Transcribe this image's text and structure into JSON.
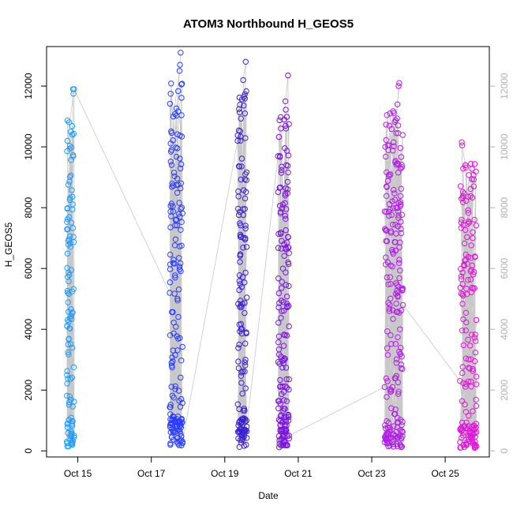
{
  "chart_data": {
    "type": "scatter",
    "title": "ATOM3 Northbound H_GEOS5",
    "xlabel": "Date",
    "ylabel": "H_GEOS5",
    "x_unit": "days since Oct 14, 00:00",
    "xlim": [
      14.15,
      26.2
    ],
    "ylim": [
      -200,
      13300
    ],
    "x_ticks": [
      {
        "value": 15,
        "label": "Oct 15"
      },
      {
        "value": 17,
        "label": "Oct 17"
      },
      {
        "value": 19,
        "label": "Oct 19"
      },
      {
        "value": 21,
        "label": "Oct 21"
      },
      {
        "value": 23,
        "label": "Oct 23"
      },
      {
        "value": 25,
        "label": "Oct 25"
      }
    ],
    "y_ticks": [
      0,
      2000,
      4000,
      6000,
      8000,
      10000,
      12000
    ],
    "right_axis_ticks": [
      0,
      2000,
      4000,
      6000,
      8000,
      10000,
      12000
    ],
    "connecting_line_color": "#c8c8c8",
    "point_style": "open-circle",
    "grid": false,
    "series": [
      {
        "color": "#1e9bff",
        "x_start": 14.7,
        "x_end": 14.9,
        "n": 110,
        "y_min": 150,
        "y_max": 11900,
        "seed": 11,
        "first_y": 300,
        "last_y": 11900,
        "extremes": [
          [
            14.87,
            11900
          ],
          [
            14.88,
            11750
          ],
          [
            14.72,
            10200
          ],
          [
            14.81,
            10500
          ],
          [
            14.75,
            150
          ],
          [
            14.85,
            200
          ],
          [
            14.9,
            500
          ]
        ]
      },
      {
        "color": "#2a3cff",
        "x_start": 17.5,
        "x_end": 17.85,
        "n": 170,
        "y_min": 180,
        "y_max": 13100,
        "seed": 23,
        "first_y": 5200,
        "last_y": 300,
        "extremes": [
          [
            17.8,
            13100
          ],
          [
            17.78,
            12700
          ],
          [
            17.77,
            12500
          ],
          [
            17.6,
            11000
          ],
          [
            17.55,
            9900
          ],
          [
            17.52,
            200
          ],
          [
            17.82,
            180
          ]
        ]
      },
      {
        "color": "#3a1fd8",
        "x_start": 19.35,
        "x_end": 19.6,
        "n": 140,
        "y_min": 120,
        "y_max": 12800,
        "seed": 37,
        "first_y": 10200,
        "last_y": 800,
        "extremes": [
          [
            19.57,
            12800
          ],
          [
            19.5,
            12200
          ],
          [
            19.55,
            11100
          ],
          [
            19.4,
            130
          ],
          [
            19.58,
            200
          ]
        ]
      },
      {
        "color": "#7a14e0",
        "x_start": 20.45,
        "x_end": 20.75,
        "n": 170,
        "y_min": 100,
        "y_max": 12350,
        "seed": 53,
        "first_y": 9700,
        "last_y": 500,
        "extremes": [
          [
            20.72,
            12350
          ],
          [
            20.65,
            11500
          ],
          [
            20.62,
            10900
          ],
          [
            20.5,
            9700
          ],
          [
            20.48,
            120
          ],
          [
            20.7,
            180
          ]
        ]
      },
      {
        "color": "#b21ee6",
        "x_start": 23.35,
        "x_end": 23.85,
        "n": 220,
        "y_min": 100,
        "y_max": 12100,
        "seed": 71,
        "first_y": 2100,
        "last_y": 4800,
        "extremes": [
          [
            23.75,
            12100
          ],
          [
            23.73,
            12000
          ],
          [
            23.7,
            11400
          ],
          [
            23.4,
            8700
          ],
          [
            23.45,
            150
          ],
          [
            23.8,
            120
          ]
        ]
      },
      {
        "color": "#de18d8",
        "x_start": 25.4,
        "x_end": 25.85,
        "n": 170,
        "y_min": 100,
        "y_max": 10150,
        "seed": 97,
        "first_y": 2300,
        "last_y": 150,
        "extremes": [
          [
            25.45,
            10150
          ],
          [
            25.46,
            10050
          ],
          [
            25.55,
            9400
          ],
          [
            25.8,
            100
          ],
          [
            25.5,
            200
          ]
        ]
      }
    ]
  }
}
